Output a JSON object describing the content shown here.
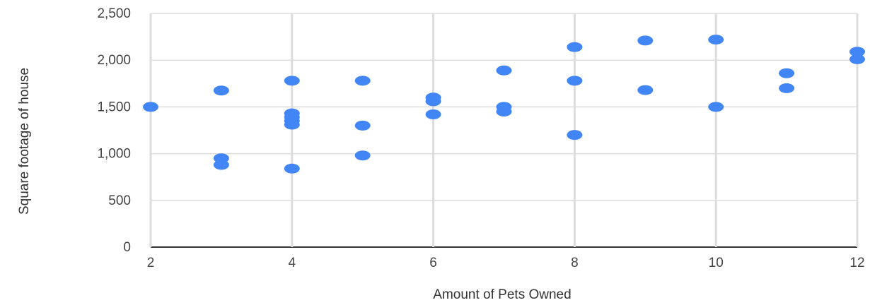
{
  "chart_data": {
    "type": "scatter",
    "title": "",
    "xlabel": "Amount of Pets Owned",
    "ylabel": "Square footage of house",
    "xlim": [
      2,
      12
    ],
    "ylim": [
      0,
      2500
    ],
    "x_ticks": [
      2,
      4,
      6,
      8,
      10,
      12
    ],
    "x_tick_labels": [
      "2",
      "4",
      "6",
      "8",
      "10",
      "12"
    ],
    "y_ticks": [
      0,
      500,
      1000,
      1500,
      2000,
      2500
    ],
    "y_tick_labels": [
      "0",
      "500",
      "1,000",
      "1,500",
      "2,000",
      "2,500"
    ],
    "grid": true,
    "legend": "none",
    "marker_color": "#4285f4",
    "series": [
      {
        "points": [
          {
            "x": 2,
            "y": 1500
          },
          {
            "x": 3,
            "y": 1675
          },
          {
            "x": 3,
            "y": 950
          },
          {
            "x": 3,
            "y": 880
          },
          {
            "x": 4,
            "y": 1780
          },
          {
            "x": 4,
            "y": 1430
          },
          {
            "x": 4,
            "y": 1390
          },
          {
            "x": 4,
            "y": 1350
          },
          {
            "x": 4,
            "y": 1310
          },
          {
            "x": 4,
            "y": 840
          },
          {
            "x": 5,
            "y": 1780
          },
          {
            "x": 5,
            "y": 1300
          },
          {
            "x": 5,
            "y": 980
          },
          {
            "x": 6,
            "y": 1600
          },
          {
            "x": 6,
            "y": 1560
          },
          {
            "x": 6,
            "y": 1420
          },
          {
            "x": 7,
            "y": 1890
          },
          {
            "x": 7,
            "y": 1500
          },
          {
            "x": 7,
            "y": 1450
          },
          {
            "x": 8,
            "y": 2140
          },
          {
            "x": 8,
            "y": 1780
          },
          {
            "x": 8,
            "y": 1200
          },
          {
            "x": 9,
            "y": 2210
          },
          {
            "x": 9,
            "y": 1680
          },
          {
            "x": 10,
            "y": 2220
          },
          {
            "x": 10,
            "y": 1500
          },
          {
            "x": 11,
            "y": 1860
          },
          {
            "x": 11,
            "y": 1700
          },
          {
            "x": 12,
            "y": 2090
          },
          {
            "x": 12,
            "y": 2010
          }
        ]
      }
    ]
  }
}
